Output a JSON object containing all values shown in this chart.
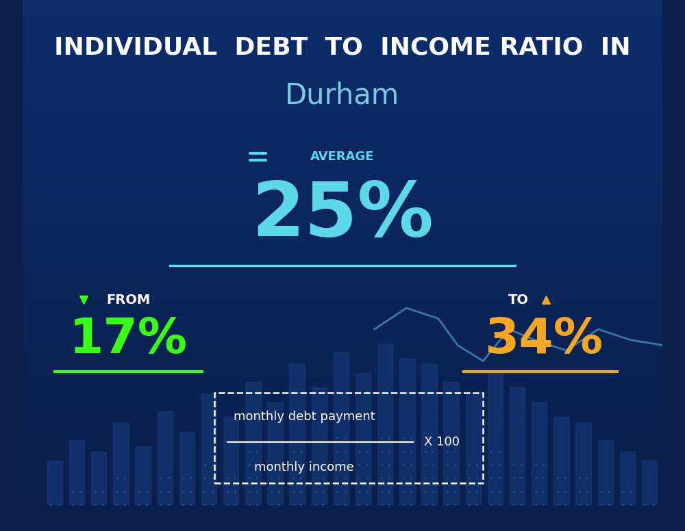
{
  "title_line1": "INDIVIDUAL  DEBT  TO  INCOME RATIO  IN",
  "title_line2": "Durham",
  "avg_label": "AVERAGE",
  "avg_value": "25%",
  "from_label": "FROM",
  "from_value": "17%",
  "to_label": "TO",
  "to_value": "34%",
  "formula_numerator": "monthly debt payment",
  "formula_denominator": "monthly income",
  "formula_multiplier": "X 100",
  "bg_color_top": "#0a1f4b",
  "bg_color_bottom": "#0d2d6b",
  "avg_color": "#5dd8e8",
  "from_color": "#39ff14",
  "to_color": "#f5a623",
  "title_color": "#ffffff",
  "subtitle_color": "#7ec8e3",
  "label_color": "#ffffff",
  "avg_underline_color": "#5dd8e8",
  "from_underline_color": "#39ff14",
  "to_underline_color": "#f5a623",
  "formula_box_color": "#ffffff",
  "formula_text_color": "#ffffff",
  "bar_color": "#1a3a7a",
  "bar_dot_color": "#2255aa",
  "line_color": "#5899c8"
}
